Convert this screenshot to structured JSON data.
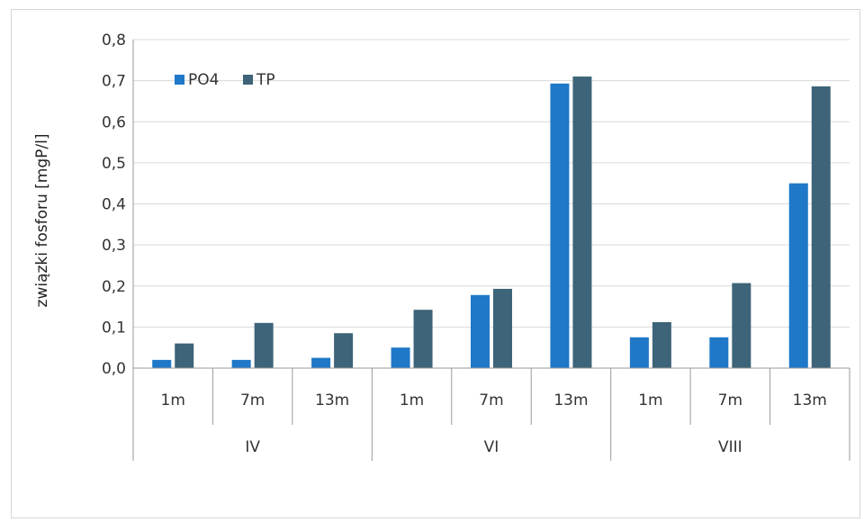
{
  "chart_data": {
    "type": "bar",
    "ylabel": "związki fosforu [mgP/l]",
    "ylim": [
      0,
      0.8
    ],
    "yticks": [
      "0,0",
      "0,1",
      "0,2",
      "0,3",
      "0,4",
      "0,5",
      "0,6",
      "0,7",
      "0,8"
    ],
    "categories": [
      "1m",
      "7m",
      "13m",
      "1m",
      "7m",
      "13m",
      "1m",
      "7m",
      "13m"
    ],
    "groups": [
      {
        "label": "IV",
        "span": 3
      },
      {
        "label": "VI",
        "span": 3
      },
      {
        "label": "VIII",
        "span": 3
      }
    ],
    "series": [
      {
        "name": "PO4",
        "color": "#1f78c8",
        "values": [
          0.02,
          0.02,
          0.025,
          0.05,
          0.178,
          0.693,
          0.075,
          0.075,
          0.45
        ]
      },
      {
        "name": "TP",
        "color": "#3d6478",
        "values": [
          0.06,
          0.11,
          0.085,
          0.142,
          0.193,
          0.71,
          0.112,
          0.207,
          0.686
        ]
      }
    ],
    "grid": true,
    "legend_position": "top-left"
  }
}
